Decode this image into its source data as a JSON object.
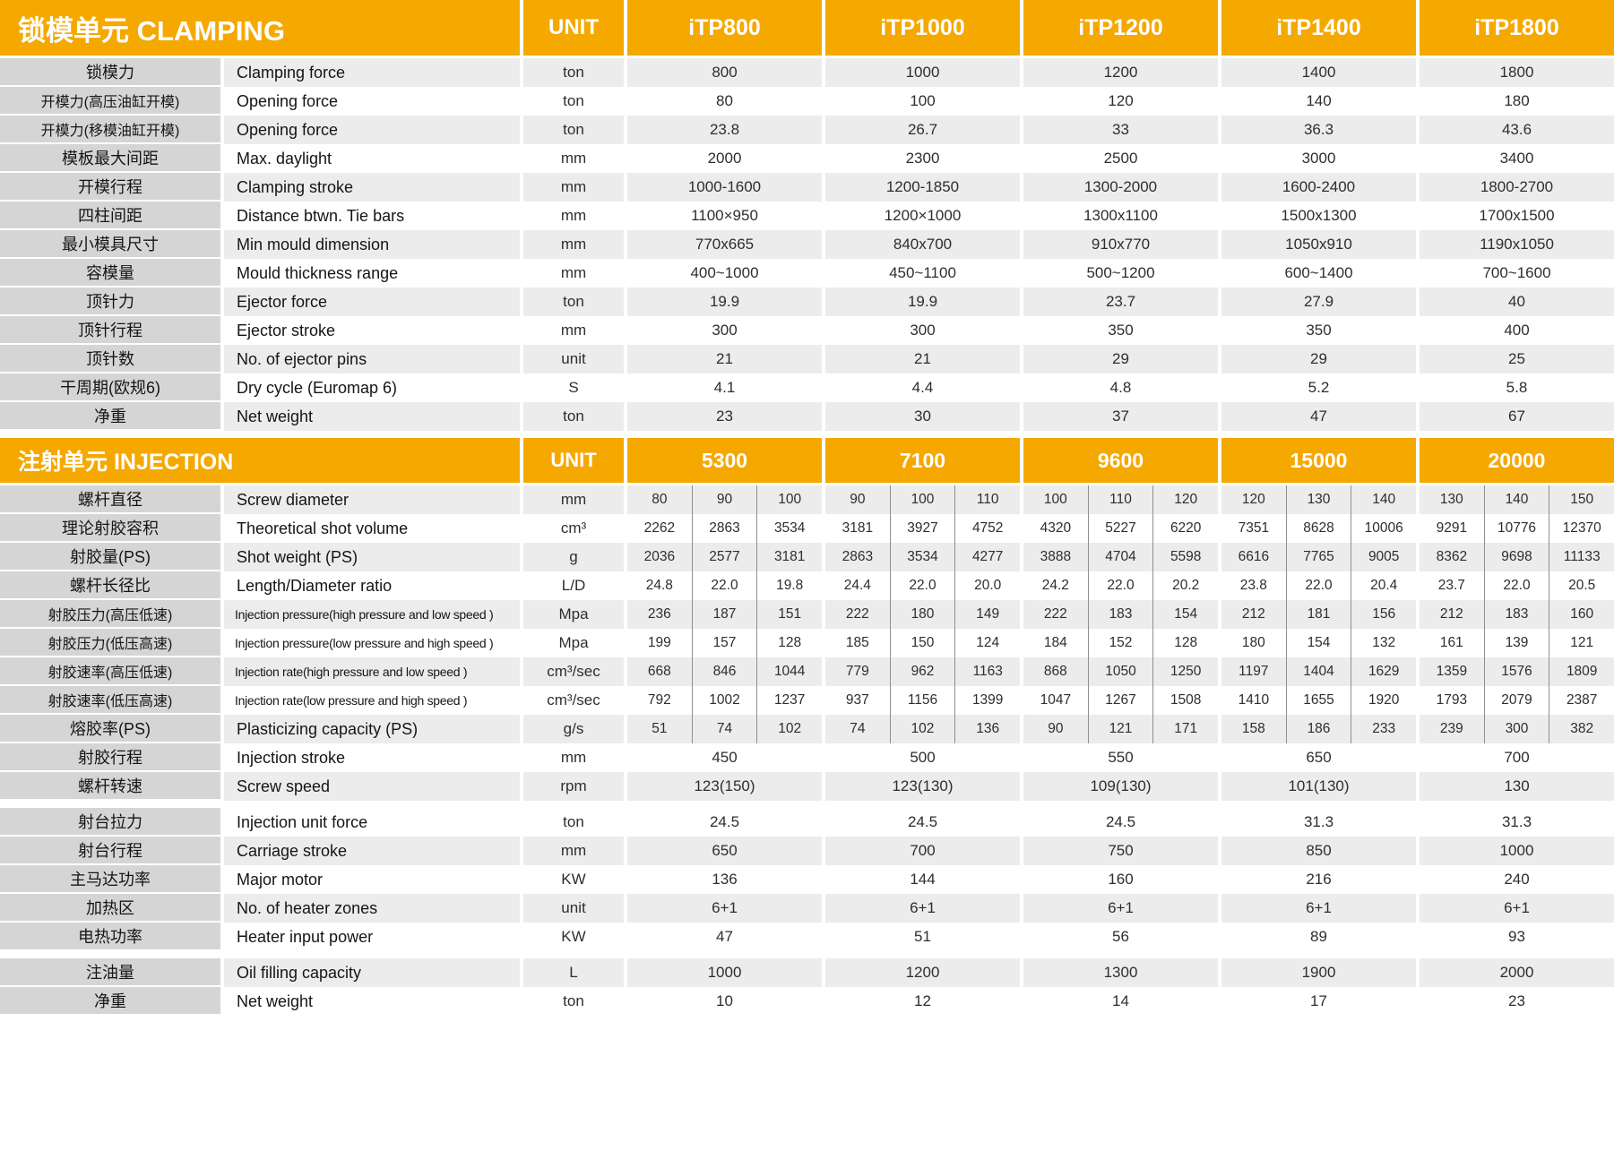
{
  "theme": {
    "header_orange": "#F5A800",
    "row_alt_gray": "#ECECEC",
    "label_gray": "#D5D5D5",
    "divider_line": "#8F8F8F",
    "header_text": "#FFFFFF"
  },
  "clamping": {
    "title": "锁模单元 CLAMPING",
    "unit_header": "UNIT",
    "models": [
      "iTP800",
      "iTP1000",
      "iTP1200",
      "iTP1400",
      "iTP1800"
    ],
    "rows": [
      {
        "cn": "锁模力",
        "en": "Clamping force",
        "unit": "ton",
        "values": [
          "800",
          "1000",
          "1200",
          "1400",
          "1800"
        ]
      },
      {
        "cn": "开模力(高压油缸开模)",
        "en": "Opening force",
        "unit": "ton",
        "values": [
          "80",
          "100",
          "120",
          "140",
          "180"
        ]
      },
      {
        "cn": "开模力(移模油缸开模)",
        "en": "Opening force",
        "unit": "ton",
        "values": [
          "23.8",
          "26.7",
          "33",
          "36.3",
          "43.6"
        ]
      },
      {
        "cn": "模板最大间距",
        "en": "Max. daylight",
        "unit": "mm",
        "values": [
          "2000",
          "2300",
          "2500",
          "3000",
          "3400"
        ]
      },
      {
        "cn": "开模行程",
        "en": "Clamping stroke",
        "unit": "mm",
        "values": [
          "1000-1600",
          "1200-1850",
          "1300-2000",
          "1600-2400",
          "1800-2700"
        ]
      },
      {
        "cn": "四柱间距",
        "en": "Distance btwn. Tie bars",
        "unit": "mm",
        "values": [
          "1100×950",
          "1200×1000",
          "1300x1100",
          "1500x1300",
          "1700x1500"
        ]
      },
      {
        "cn": "最小模具尺寸",
        "en": "Min mould dimension",
        "unit": "mm",
        "values": [
          "770x665",
          "840x700",
          "910x770",
          "1050x910",
          "1190x1050"
        ]
      },
      {
        "cn": "容模量",
        "en": "Mould thickness range",
        "unit": "mm",
        "values": [
          "400~1000",
          "450~1100",
          "500~1200",
          "600~1400",
          "700~1600"
        ]
      },
      {
        "cn": "顶针力",
        "en": "Ejector force",
        "unit": "ton",
        "values": [
          "19.9",
          "19.9",
          "23.7",
          "27.9",
          "40"
        ]
      },
      {
        "cn": "顶针行程",
        "en": "Ejector stroke",
        "unit": "mm",
        "values": [
          "300",
          "300",
          "350",
          "350",
          "400"
        ]
      },
      {
        "cn": "顶针数",
        "en": "No. of ejector pins",
        "unit": "unit",
        "values": [
          "21",
          "21",
          "29",
          "29",
          "25"
        ]
      },
      {
        "cn": "干周期(欧规6)",
        "en": "Dry cycle (Euromap 6)",
        "unit": "S",
        "values": [
          "4.1",
          "4.4",
          "4.8",
          "5.2",
          "5.8"
        ]
      },
      {
        "cn": "净重",
        "en": "Net weight",
        "unit": "ton",
        "values": [
          "23",
          "30",
          "37",
          "47",
          "67"
        ]
      }
    ]
  },
  "injection": {
    "title": "注射单元 INJECTION",
    "unit_header": "UNIT",
    "models": [
      "5300",
      "7100",
      "9600",
      "15000",
      "20000"
    ],
    "rows": [
      {
        "cn": "螺杆直径",
        "en": "Screw diameter",
        "unit": "mm",
        "values": [
          [
            "80",
            "90",
            "100"
          ],
          [
            "90",
            "100",
            "110"
          ],
          [
            "100",
            "110",
            "120"
          ],
          [
            "120",
            "130",
            "140"
          ],
          [
            "130",
            "140",
            "150"
          ]
        ]
      },
      {
        "cn": "理论射胶容积",
        "en": "Theoretical shot volume",
        "unit": "cm³",
        "values": [
          [
            "2262",
            "2863",
            "3534"
          ],
          [
            "3181",
            "3927",
            "4752"
          ],
          [
            "4320",
            "5227",
            "6220"
          ],
          [
            "7351",
            "8628",
            "10006"
          ],
          [
            "9291",
            "10776",
            "12370"
          ]
        ]
      },
      {
        "cn": "射胶量(PS)",
        "en": "Shot weight (PS)",
        "unit": "g",
        "values": [
          [
            "2036",
            "2577",
            "3181"
          ],
          [
            "2863",
            "3534",
            "4277"
          ],
          [
            "3888",
            "4704",
            "5598"
          ],
          [
            "6616",
            "7765",
            "9005"
          ],
          [
            "8362",
            "9698",
            "11133"
          ]
        ]
      },
      {
        "cn": "螺杆长径比",
        "en": "Length/Diameter ratio",
        "unit": "L/D",
        "values": [
          [
            "24.8",
            "22.0",
            "19.8"
          ],
          [
            "24.4",
            "22.0",
            "20.0"
          ],
          [
            "24.2",
            "22.0",
            "20.2"
          ],
          [
            "23.8",
            "22.0",
            "20.4"
          ],
          [
            "23.7",
            "22.0",
            "20.5"
          ]
        ]
      },
      {
        "cn": "射胶压力(高压低速)",
        "en": "Injection pressure(high pressure and low speed )",
        "unit": "Mpa",
        "values": [
          [
            "236",
            "187",
            "151"
          ],
          [
            "222",
            "180",
            "149"
          ],
          [
            "222",
            "183",
            "154"
          ],
          [
            "212",
            "181",
            "156"
          ],
          [
            "212",
            "183",
            "160"
          ]
        ]
      },
      {
        "cn": "射胶压力(低压高速)",
        "en": "Injection pressure(low pressure and high speed )",
        "unit": "Mpa",
        "values": [
          [
            "199",
            "157",
            "128"
          ],
          [
            "185",
            "150",
            "124"
          ],
          [
            "184",
            "152",
            "128"
          ],
          [
            "180",
            "154",
            "132"
          ],
          [
            "161",
            "139",
            "121"
          ]
        ]
      },
      {
        "cn": "射胶速率(高压低速)",
        "en": "Injection rate(high pressure and low speed )",
        "unit": "cm³/sec",
        "values": [
          [
            "668",
            "846",
            "1044"
          ],
          [
            "779",
            "962",
            "1163"
          ],
          [
            "868",
            "1050",
            "1250"
          ],
          [
            "1197",
            "1404",
            "1629"
          ],
          [
            "1359",
            "1576",
            "1809"
          ]
        ]
      },
      {
        "cn": "射胶速率(低压高速)",
        "en": "Injection rate(low pressure and high speed )",
        "unit": "cm³/sec",
        "values": [
          [
            "792",
            "1002",
            "1237"
          ],
          [
            "937",
            "1156",
            "1399"
          ],
          [
            "1047",
            "1267",
            "1508"
          ],
          [
            "1410",
            "1655",
            "1920"
          ],
          [
            "1793",
            "2079",
            "2387"
          ]
        ]
      },
      {
        "cn": "熔胶率(PS)",
        "en": "Plasticizing capacity (PS)",
        "unit": "g/s",
        "values": [
          [
            "51",
            "74",
            "102"
          ],
          [
            "74",
            "102",
            "136"
          ],
          [
            "90",
            "121",
            "171"
          ],
          [
            "158",
            "186",
            "233"
          ],
          [
            "239",
            "300",
            "382"
          ]
        ]
      },
      {
        "cn": "射胶行程",
        "en": "Injection stroke",
        "unit": "mm",
        "values": [
          "450",
          "500",
          "550",
          "650",
          "700"
        ]
      },
      {
        "cn": "螺杆转速",
        "en": "Screw speed",
        "unit": "rpm",
        "values": [
          "123(150)",
          "123(130)",
          "109(130)",
          "101(130)",
          "130"
        ]
      },
      {
        "cn": "射台拉力",
        "en": "Injection unit force",
        "unit": "ton",
        "gap_before": true,
        "values": [
          "24.5",
          "24.5",
          "24.5",
          "31.3",
          "31.3"
        ]
      },
      {
        "cn": "射台行程",
        "en": "Carriage stroke",
        "unit": "mm",
        "values": [
          "650",
          "700",
          "750",
          "850",
          "1000"
        ]
      },
      {
        "cn": "主马达功率",
        "en": "Major motor",
        "unit": "KW",
        "values": [
          "136",
          "144",
          "160",
          "216",
          "240"
        ]
      },
      {
        "cn": "加热区",
        "en": "No. of heater zones",
        "unit": "unit",
        "values": [
          "6+1",
          "6+1",
          "6+1",
          "6+1",
          "6+1"
        ]
      },
      {
        "cn": "电热功率",
        "en": "Heater input power",
        "unit": "KW",
        "values": [
          "47",
          "51",
          "56",
          "89",
          "93"
        ]
      },
      {
        "cn": "注油量",
        "en": "Oil filling capacity",
        "unit": "L",
        "gap_before": true,
        "values": [
          "1000",
          "1200",
          "1300",
          "1900",
          "2000"
        ]
      },
      {
        "cn": "净重",
        "en": "Net weight",
        "unit": "ton",
        "values": [
          "10",
          "12",
          "14",
          "17",
          "23"
        ]
      }
    ]
  }
}
